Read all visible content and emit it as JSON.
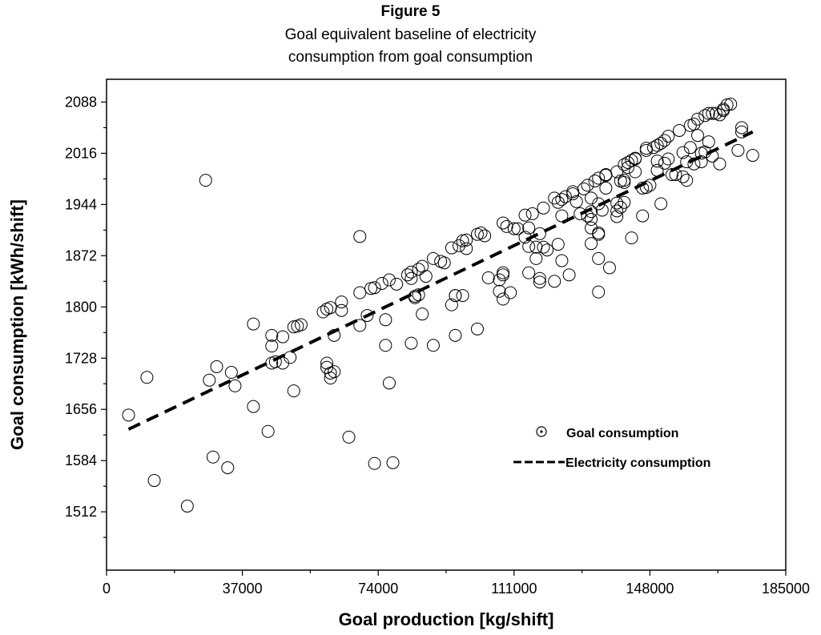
{
  "figure": {
    "label": "Figure 5",
    "title_line1": "Goal equivalent baseline of electricity",
    "title_line2": "consumption from goal consumption"
  },
  "chart_data": {
    "type": "scatter",
    "xlabel": "Goal production [kg/shift]",
    "ylabel": "Goal consumption [kWh/shift]",
    "xlim": [
      0,
      185000
    ],
    "ylim": [
      1430,
      2120
    ],
    "xticks": [
      0,
      37000,
      74000,
      111000,
      148000,
      185000
    ],
    "yticks": [
      1512,
      1584,
      1656,
      1728,
      1800,
      1872,
      1944,
      2016,
      2088
    ],
    "grid": false,
    "legend_position": "lower-right",
    "series": [
      {
        "name": "Goal consumption",
        "marker": "open-circle",
        "points": [
          [
            6000,
            1648
          ],
          [
            11000,
            1701
          ],
          [
            13000,
            1556
          ],
          [
            22000,
            1520
          ],
          [
            27000,
            1978
          ],
          [
            28000,
            1697
          ],
          [
            30000,
            1716
          ],
          [
            29000,
            1589
          ],
          [
            33000,
            1574
          ],
          [
            34000,
            1708
          ],
          [
            35000,
            1689
          ],
          [
            40000,
            1776
          ],
          [
            40000,
            1660
          ],
          [
            44000,
            1625
          ],
          [
            45000,
            1745
          ],
          [
            45000,
            1760
          ],
          [
            45000,
            1721
          ],
          [
            46000,
            1723
          ],
          [
            48000,
            1758
          ],
          [
            48000,
            1721
          ],
          [
            50000,
            1729
          ],
          [
            51000,
            1772
          ],
          [
            51000,
            1682
          ],
          [
            52000,
            1773
          ],
          [
            53000,
            1775
          ],
          [
            59000,
            1793
          ],
          [
            60000,
            1797
          ],
          [
            60000,
            1721
          ],
          [
            61000,
            1799
          ],
          [
            60000,
            1715
          ],
          [
            61000,
            1707
          ],
          [
            61000,
            1700
          ],
          [
            62000,
            1760
          ],
          [
            62000,
            1709
          ],
          [
            64000,
            1795
          ],
          [
            64000,
            1807
          ],
          [
            66000,
            1617
          ],
          [
            69000,
            1820
          ],
          [
            69000,
            1774
          ],
          [
            69000,
            1899
          ],
          [
            71000,
            1788
          ],
          [
            72000,
            1826
          ],
          [
            73000,
            1827
          ],
          [
            73000,
            1580
          ],
          [
            75000,
            1833
          ],
          [
            76000,
            1746
          ],
          [
            76000,
            1782
          ],
          [
            77000,
            1838
          ],
          [
            77000,
            1693
          ],
          [
            78000,
            1581
          ],
          [
            79000,
            1832
          ],
          [
            82000,
            1845
          ],
          [
            83000,
            1849
          ],
          [
            83000,
            1749
          ],
          [
            83000,
            1840
          ],
          [
            84000,
            1813
          ],
          [
            84000,
            1815
          ],
          [
            85000,
            1853
          ],
          [
            85000,
            1817
          ],
          [
            86000,
            1857
          ],
          [
            86000,
            1790
          ],
          [
            87000,
            1843
          ],
          [
            89000,
            1868
          ],
          [
            89000,
            1746
          ],
          [
            91000,
            1864
          ],
          [
            92000,
            1862
          ],
          [
            94000,
            1883
          ],
          [
            94000,
            1803
          ],
          [
            95000,
            1816
          ],
          [
            95000,
            1816
          ],
          [
            95000,
            1760
          ],
          [
            96000,
            1886
          ],
          [
            97000,
            1893
          ],
          [
            97000,
            1816
          ],
          [
            98000,
            1894
          ],
          [
            98000,
            1882
          ],
          [
            101000,
            1902
          ],
          [
            101000,
            1769
          ],
          [
            102000,
            1904
          ],
          [
            103000,
            1900
          ],
          [
            104000,
            1841
          ],
          [
            107000,
            1838
          ],
          [
            107000,
            1822
          ],
          [
            108000,
            1811
          ],
          [
            108000,
            1848
          ],
          [
            108000,
            1845
          ],
          [
            108000,
            1918
          ],
          [
            109000,
            1913
          ],
          [
            110000,
            1820
          ],
          [
            111000,
            1910
          ],
          [
            112000,
            1910
          ],
          [
            114000,
            1929
          ],
          [
            114000,
            1898
          ],
          [
            115000,
            1885
          ],
          [
            115000,
            1848
          ],
          [
            115000,
            1911
          ],
          [
            116000,
            1931
          ],
          [
            117000,
            1868
          ],
          [
            117000,
            1884
          ],
          [
            118000,
            1840
          ],
          [
            118000,
            1835
          ],
          [
            118000,
            1903
          ],
          [
            119000,
            1939
          ],
          [
            119000,
            1884
          ],
          [
            120000,
            1880
          ],
          [
            122000,
            1836
          ],
          [
            122000,
            1953
          ],
          [
            123000,
            1947
          ],
          [
            123000,
            1888
          ],
          [
            124000,
            1928
          ],
          [
            124000,
            1865
          ],
          [
            124000,
            1951
          ],
          [
            125000,
            1955
          ],
          [
            126000,
            1845
          ],
          [
            127000,
            1959
          ],
          [
            127000,
            1962
          ],
          [
            128000,
            1948
          ],
          [
            129000,
            1931
          ],
          [
            130000,
            1966
          ],
          [
            131000,
            1928
          ],
          [
            131000,
            1971
          ],
          [
            132000,
            1889
          ],
          [
            132000,
            1934
          ],
          [
            132000,
            1923
          ],
          [
            132000,
            1911
          ],
          [
            132000,
            1953
          ],
          [
            133000,
            1977
          ],
          [
            134000,
            1945
          ],
          [
            134000,
            1981
          ],
          [
            134000,
            1821
          ],
          [
            134000,
            1904
          ],
          [
            134000,
            1902
          ],
          [
            134000,
            1868
          ],
          [
            135000,
            1936
          ],
          [
            136000,
            1967
          ],
          [
            136000,
            1986
          ],
          [
            136000,
            1985
          ],
          [
            137000,
            1855
          ],
          [
            139000,
            1990
          ],
          [
            139000,
            1927
          ],
          [
            139000,
            1935
          ],
          [
            139000,
            1946
          ],
          [
            140000,
            1940
          ],
          [
            140000,
            1977
          ],
          [
            141000,
            2000
          ],
          [
            141000,
            1978
          ],
          [
            141000,
            1947
          ],
          [
            141000,
            1975
          ],
          [
            142000,
            2003
          ],
          [
            142000,
            1996
          ],
          [
            143000,
            1897
          ],
          [
            143000,
            2006
          ],
          [
            144000,
            2008
          ],
          [
            144000,
            1990
          ],
          [
            144000,
            2009
          ],
          [
            146000,
            1967
          ],
          [
            146000,
            1928
          ],
          [
            147000,
            1968
          ],
          [
            147000,
            2020
          ],
          [
            147000,
            2023
          ],
          [
            148000,
            1971
          ],
          [
            149000,
            2024
          ],
          [
            150000,
            2027
          ],
          [
            150000,
            2005
          ],
          [
            150000,
            1992
          ],
          [
            151000,
            2030
          ],
          [
            151000,
            1945
          ],
          [
            152000,
            2034
          ],
          [
            152000,
            2002
          ],
          [
            153000,
            2040
          ],
          [
            153000,
            2008
          ],
          [
            154000,
            1986
          ],
          [
            155000,
            1986
          ],
          [
            156000,
            2048
          ],
          [
            157000,
            2017
          ],
          [
            157000,
            1983
          ],
          [
            158000,
            2004
          ],
          [
            158000,
            1978
          ],
          [
            159000,
            2055
          ],
          [
            159000,
            2024
          ],
          [
            160000,
            2057
          ],
          [
            160000,
            2001
          ],
          [
            161000,
            2064
          ],
          [
            161000,
            2041
          ],
          [
            162000,
            2004
          ],
          [
            162000,
            2016
          ],
          [
            163000,
            2069
          ],
          [
            163000,
            2018
          ],
          [
            164000,
            2072
          ],
          [
            164000,
            2032
          ],
          [
            165000,
            2072
          ],
          [
            165000,
            2012
          ],
          [
            166000,
            2072
          ],
          [
            167000,
            2070
          ],
          [
            167000,
            2001
          ],
          [
            168000,
            2076
          ],
          [
            168000,
            2078
          ],
          [
            169000,
            2084
          ],
          [
            170000,
            2085
          ],
          [
            172000,
            2020
          ],
          [
            173000,
            2052
          ],
          [
            173000,
            2046
          ],
          [
            176000,
            2013
          ]
        ]
      },
      {
        "name": "Electricity consumption",
        "line_style": "dashed",
        "x": [
          6000,
          176000
        ],
        "y": [
          1628,
          2046
        ]
      }
    ]
  }
}
